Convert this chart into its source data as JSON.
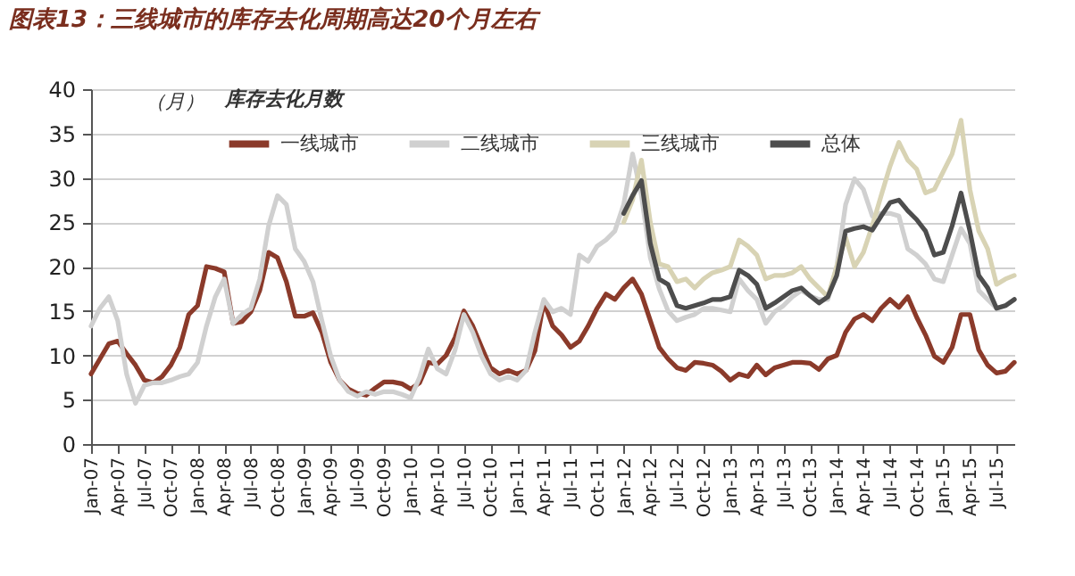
{
  "chart_data": {
    "type": "line",
    "title": "图表13：三线城市的库存去化周期高达20个月左右",
    "ylabel": "（月）",
    "legend_title": "库存去化月数",
    "categories": [
      "Jan-07",
      null,
      null,
      "Apr-07",
      null,
      null,
      "Jul-07",
      null,
      null,
      "Oct-07",
      null,
      null,
      "Jan-08",
      null,
      null,
      "Apr-08",
      null,
      null,
      "Jul-08",
      null,
      null,
      "Oct-08",
      null,
      null,
      "Jan-09",
      null,
      null,
      "Apr-09",
      null,
      null,
      "Jul-09",
      null,
      null,
      "Oct-09",
      null,
      null,
      "Jan-10",
      null,
      null,
      "Apr-10",
      null,
      null,
      "Jul-10",
      null,
      null,
      "Oct-10",
      null,
      null,
      "Jan-11",
      null,
      null,
      "Apr-11",
      null,
      null,
      "Jul-11",
      null,
      null,
      "Oct-11",
      null,
      null,
      "Jan-12",
      null,
      null,
      "Apr-12",
      null,
      null,
      "Jul-12",
      null,
      null,
      "Oct-12",
      null,
      null,
      "Jan-13",
      null,
      null,
      "Apr-13",
      null,
      null,
      "Jul-13",
      null,
      null,
      "Oct-13",
      null,
      null,
      "Jan-14",
      null,
      null,
      "Apr-14",
      null,
      null,
      "Jul-14",
      null,
      null,
      "Oct-14",
      null,
      null,
      "Jan-15",
      null,
      null,
      "Apr-15",
      null,
      null,
      "Jul-15",
      null,
      null
    ],
    "series": [
      {
        "name": "一线城市",
        "color": "#8b3a2a",
        "values": [
          7.9,
          9.6,
          11.3,
          11.6,
          10.2,
          8.9,
          7.2,
          6.9,
          7.6,
          8.9,
          10.9,
          14.6,
          15.6,
          20.0,
          19.8,
          19.4,
          13.6,
          13.8,
          14.9,
          17.3,
          21.6,
          21.0,
          18.3,
          14.4,
          14.4,
          14.8,
          12.6,
          9.2,
          7.2,
          6.2,
          5.7,
          5.5,
          6.3,
          7.0,
          7.0,
          6.8,
          6.2,
          6.9,
          9.2,
          9.0,
          10.0,
          12.0,
          15.0,
          13.3,
          10.9,
          8.6,
          7.9,
          8.3,
          7.9,
          8.3,
          10.5,
          16.0,
          13.3,
          12.3,
          10.9,
          11.6,
          13.3,
          15.3,
          16.9,
          16.3,
          17.6,
          18.6,
          16.9,
          13.9,
          10.9,
          9.6,
          8.6,
          8.3,
          9.2,
          9.1,
          8.9,
          8.2,
          7.2,
          7.9,
          7.6,
          8.9,
          7.8,
          8.6,
          8.9,
          9.2,
          9.2,
          9.1,
          8.4,
          9.6,
          10.0,
          12.6,
          14.1,
          14.6,
          13.9,
          15.3,
          16.3,
          15.4,
          16.6,
          14.3,
          12.3,
          9.9,
          9.2,
          10.9,
          14.6,
          14.6,
          10.6,
          8.9,
          8.0,
          8.2,
          9.2
        ]
      },
      {
        "name": "二线城市",
        "color": "#d0d0d0",
        "values": [
          13.3,
          15.3,
          16.6,
          13.9,
          7.9,
          4.6,
          6.6,
          6.9,
          6.9,
          7.2,
          7.6,
          7.9,
          9.2,
          13.3,
          16.6,
          18.6,
          13.6,
          14.6,
          15.3,
          18.6,
          24.6,
          28.0,
          27.0,
          22.0,
          20.6,
          18.3,
          13.9,
          9.9,
          7.2,
          5.9,
          5.4,
          5.9,
          5.6,
          5.9,
          5.9,
          5.6,
          5.2,
          7.5,
          10.7,
          8.5,
          7.9,
          10.6,
          14.6,
          12.6,
          9.9,
          7.9,
          7.2,
          7.6,
          7.2,
          8.3,
          12.6,
          16.3,
          14.9,
          15.3,
          14.6,
          21.3,
          20.6,
          22.3,
          23.0,
          24.0,
          27.0,
          32.7,
          28.0,
          21.0,
          17.5,
          15.0,
          13.9,
          14.3,
          14.6,
          15.3,
          15.3,
          15.1,
          14.9,
          18.6,
          17.3,
          16.3,
          13.6,
          14.9,
          15.6,
          16.6,
          17.3,
          16.7,
          16.3,
          16.3,
          20.0,
          27.0,
          29.9,
          28.7,
          25.7,
          26.0,
          26.0,
          25.7,
          22.0,
          21.3,
          20.3,
          18.6,
          18.3,
          21.3,
          24.3,
          22.6,
          17.3,
          16.3,
          15.3,
          15.6,
          16.3
        ]
      },
      {
        "name": "三线城市",
        "color": "#d8d3b4",
        "values": [
          null,
          null,
          null,
          null,
          null,
          null,
          null,
          null,
          null,
          null,
          null,
          null,
          null,
          null,
          null,
          null,
          null,
          null,
          null,
          null,
          null,
          null,
          null,
          null,
          null,
          null,
          null,
          null,
          null,
          null,
          null,
          null,
          null,
          null,
          null,
          null,
          null,
          null,
          null,
          null,
          null,
          null,
          null,
          null,
          null,
          null,
          null,
          null,
          null,
          null,
          null,
          null,
          null,
          null,
          null,
          null,
          null,
          null,
          null,
          null,
          25.0,
          27.5,
          32.0,
          25.0,
          20.3,
          20.0,
          18.3,
          18.6,
          17.6,
          18.6,
          19.3,
          19.6,
          20.0,
          23.0,
          22.3,
          21.3,
          18.6,
          19.0,
          19.0,
          19.3,
          20.0,
          18.6,
          17.6,
          16.6,
          20.0,
          23.3,
          20.0,
          21.6,
          24.6,
          28.0,
          31.3,
          34.0,
          32.0,
          31.0,
          28.3,
          28.7,
          30.7,
          32.7,
          36.5,
          28.7,
          24.0,
          22.0,
          18.0,
          18.6,
          19.0
        ]
      },
      {
        "name": "总体",
        "color": "#4d4d4d",
        "values": [
          null,
          null,
          null,
          null,
          null,
          null,
          null,
          null,
          null,
          null,
          null,
          null,
          null,
          null,
          null,
          null,
          null,
          null,
          null,
          null,
          null,
          null,
          null,
          null,
          null,
          null,
          null,
          null,
          null,
          null,
          null,
          null,
          null,
          null,
          null,
          null,
          null,
          null,
          null,
          null,
          null,
          null,
          null,
          null,
          null,
          null,
          null,
          null,
          null,
          null,
          null,
          null,
          null,
          null,
          null,
          null,
          null,
          null,
          null,
          null,
          26.0,
          28.0,
          29.7,
          22.6,
          18.6,
          18.0,
          15.6,
          15.3,
          15.6,
          15.9,
          16.3,
          16.3,
          16.6,
          19.6,
          19.0,
          18.0,
          15.3,
          15.9,
          16.6,
          17.3,
          17.6,
          16.7,
          15.9,
          16.6,
          19.0,
          24.0,
          24.3,
          24.5,
          24.1,
          25.7,
          27.2,
          27.5,
          26.3,
          25.3,
          24.0,
          21.3,
          21.6,
          24.6,
          28.3,
          24.0,
          19.0,
          17.6,
          15.3,
          15.6,
          16.3
        ]
      }
    ],
    "ylim": [
      0,
      40
    ],
    "yticks": [
      0,
      5,
      10,
      15,
      20,
      25,
      30,
      35,
      40
    ],
    "grid": "y",
    "legend": "top"
  }
}
